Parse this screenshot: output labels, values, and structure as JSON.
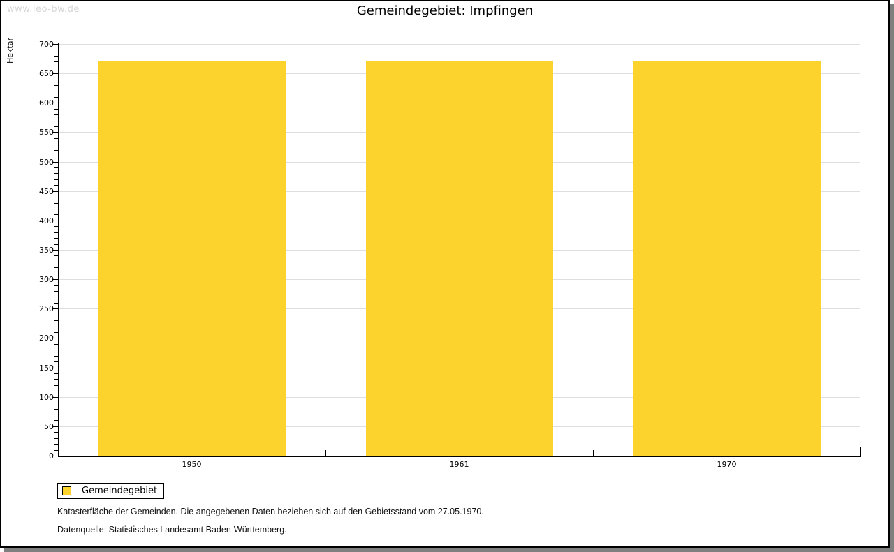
{
  "watermark": "www.leo-bw.de",
  "title": "Gemeindegebiet: Impfingen",
  "chart_data": {
    "type": "bar",
    "title": "Gemeindegebiet: Impfingen",
    "categories": [
      "1950",
      "1961",
      "1970"
    ],
    "series": [
      {
        "name": "Gemeindegebiet",
        "values": [
          672,
          672,
          672
        ],
        "color": "#FCD32C"
      }
    ],
    "xlabel": "",
    "ylabel": "Hektar",
    "ylim": [
      0,
      700
    ],
    "ytick_step": 50,
    "yminor_step": 10,
    "ytick_labels": [
      "0",
      "50",
      "100",
      "150",
      "200",
      "250",
      "300",
      "350",
      "400",
      "450",
      "500",
      "550",
      "600",
      "650",
      "700"
    ],
    "grid": "horizontal-major",
    "legend_position": "bottom-left"
  },
  "legend": {
    "items": [
      {
        "label": "Gemeindegebiet",
        "color": "#FCD32C"
      }
    ]
  },
  "footer": {
    "line1": "Katasterfläche der Gemeinden. Die angegebenen Daten beziehen sich auf den Gebietsstand vom 27.05.1970.",
    "line2": "Datenquelle: Statistisches Landesamt Baden-Württemberg."
  },
  "colors": {
    "bar": "#FCD32C",
    "grid": "#DEDEDE",
    "axis": "#000000",
    "text": "#000000",
    "watermark": "#D6D6D6",
    "shadow": "#7F7F7F",
    "background": "#FFFFFF"
  }
}
